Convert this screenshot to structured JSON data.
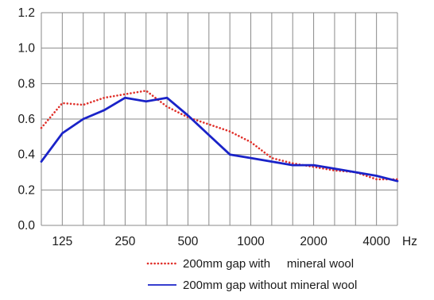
{
  "chart_data": {
    "type": "line",
    "title": "",
    "xlabel": "",
    "xunit": "Hz",
    "ylabel": "",
    "ylim": [
      0,
      1.2
    ],
    "yticks": [
      "0.0",
      "0.2",
      "0.4",
      "0.6",
      "0.8",
      "1.0",
      "1.2"
    ],
    "x": [
      100,
      125,
      160,
      200,
      250,
      315,
      400,
      500,
      630,
      800,
      1000,
      1250,
      1600,
      2000,
      2500,
      3150,
      4000,
      5000
    ],
    "xticks": [
      {
        "value": 125,
        "label": "125"
      },
      {
        "value": 250,
        "label": "250"
      },
      {
        "value": 500,
        "label": "500"
      },
      {
        "value": 1000,
        "label": "1000"
      },
      {
        "value": 2000,
        "label": "2000"
      },
      {
        "value": 4000,
        "label": "4000"
      }
    ],
    "grid": true,
    "legend_position": "bottom-right",
    "series": [
      {
        "name": "200mm gap with     mineral wool",
        "style": "dotted",
        "color": "#e0302a",
        "values": [
          0.55,
          0.69,
          0.68,
          0.72,
          0.74,
          0.76,
          0.67,
          0.61,
          0.57,
          0.53,
          0.47,
          0.38,
          0.35,
          0.33,
          0.31,
          0.3,
          0.26,
          0.26
        ]
      },
      {
        "name": "200mm gap without mineral wool",
        "style": "solid",
        "color": "#1a23c8",
        "values": [
          0.36,
          0.52,
          0.6,
          0.65,
          0.72,
          0.7,
          0.72,
          0.62,
          0.51,
          0.4,
          0.38,
          0.36,
          0.34,
          0.34,
          0.32,
          0.3,
          0.28,
          0.25
        ]
      }
    ]
  }
}
